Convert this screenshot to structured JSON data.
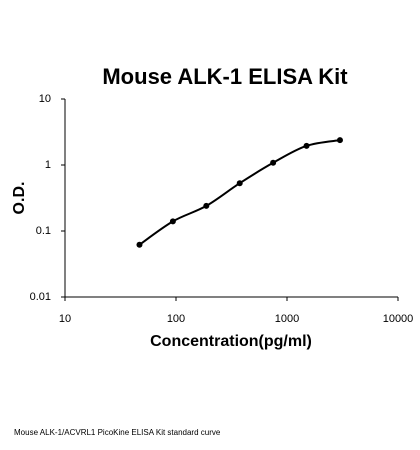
{
  "chart_data": {
    "type": "scatter-line",
    "title": "Mouse ALK-1 ELISA Kit",
    "xlabel": "Concentration(pg/ml)",
    "ylabel": "O.D.",
    "x": [
      46.875,
      93.75,
      187.5,
      375,
      750,
      1500,
      3000
    ],
    "values": [
      0.062,
      0.14,
      0.24,
      0.53,
      1.08,
      1.95,
      2.38
    ],
    "color": "#000000",
    "xlim": [
      10,
      10000
    ],
    "ylim": [
      0.01,
      10
    ],
    "xticks": [
      10,
      100,
      1000,
      10000
    ],
    "yticks": [
      0.01,
      0.1,
      1,
      10
    ],
    "log_x": true,
    "log_y": true,
    "grid": false,
    "caption": "Mouse ALK-1/ACVRL1 PicoKine ELISA Kit standard curve"
  }
}
